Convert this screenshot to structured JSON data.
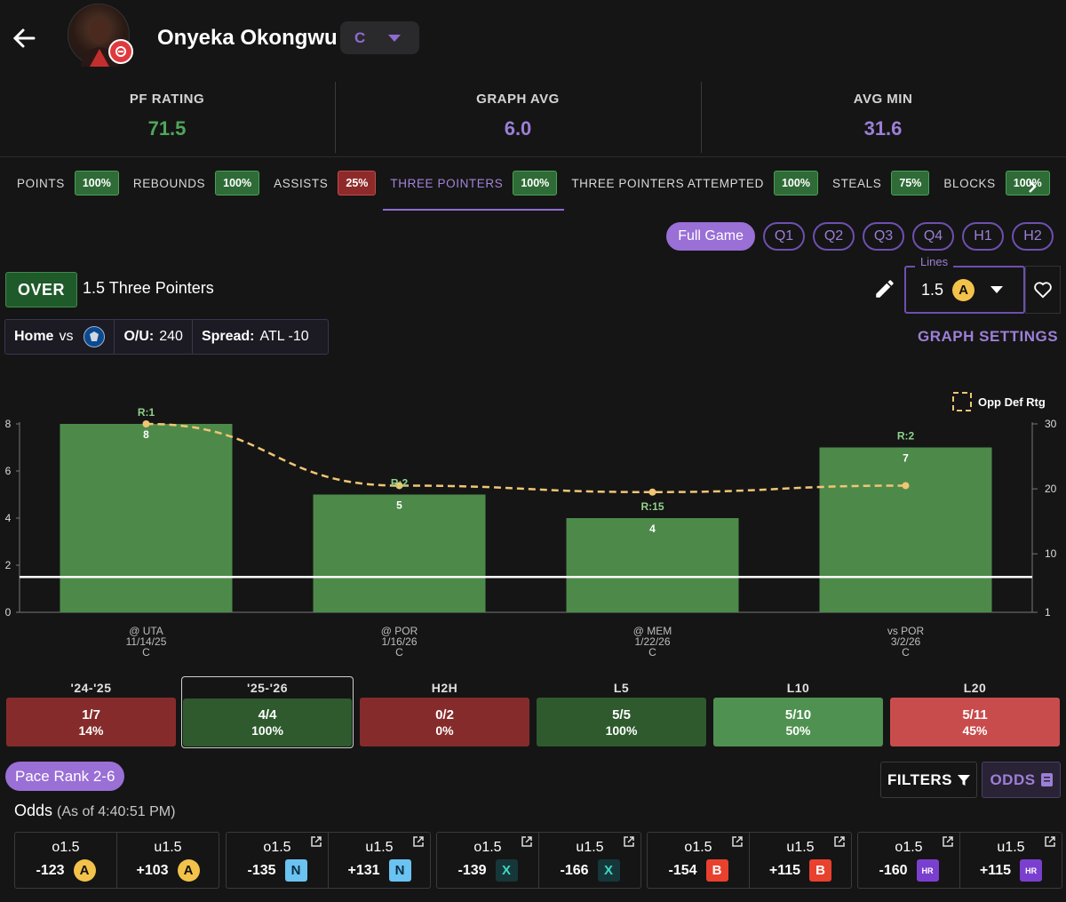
{
  "player": {
    "name": "Onyeka Okongwu",
    "position": "C"
  },
  "stats": [
    {
      "label": "PF RATING",
      "value": "71.5",
      "color": "#4fa65b"
    },
    {
      "label": "GRAPH AVG",
      "value": "6.0",
      "color": "#9c7fd6"
    },
    {
      "label": "AVG MIN",
      "value": "31.6",
      "color": "#9c7fd6"
    }
  ],
  "tabs": [
    {
      "label": "POINTS",
      "pct": "100%",
      "status": "green"
    },
    {
      "label": "REBOUNDS",
      "pct": "100%",
      "status": "green"
    },
    {
      "label": "ASSISTS",
      "pct": "25%",
      "status": "red"
    },
    {
      "label": "THREE POINTERS",
      "pct": "100%",
      "status": "green",
      "active": true
    },
    {
      "label": "THREE POINTERS ATTEMPTED",
      "pct": "100%",
      "status": "green"
    },
    {
      "label": "STEALS",
      "pct": "75%",
      "status": "green"
    },
    {
      "label": "BLOCKS",
      "pct": "100%",
      "status": "green"
    }
  ],
  "periods": [
    "Full Game",
    "Q1",
    "Q2",
    "Q3",
    "Q4",
    "H1",
    "H2"
  ],
  "prop": {
    "side": "OVER",
    "description": "1.5 Three Pointers"
  },
  "lines": {
    "label": "Lines",
    "value": "1.5"
  },
  "game": {
    "venue": "Home",
    "vs": "vs",
    "ou_label": "O/U:",
    "ou_value": "240",
    "spread_label": "Spread:",
    "spread_value": "ATL -10"
  },
  "graph_settings_label": "GRAPH SETTINGS",
  "chart_data": {
    "type": "bar",
    "categories": [
      "@ UTA",
      "@ POR",
      "@ MEM",
      "vs POR"
    ],
    "dates": [
      "11/14/25",
      "1/16/26",
      "1/22/26",
      "3/2/26"
    ],
    "positions": [
      "C",
      "C",
      "C",
      "C"
    ],
    "values": [
      8,
      5,
      4,
      7
    ],
    "value_labels": [
      "8",
      "5",
      "4",
      "7"
    ],
    "ranks": [
      "R:1",
      "R:2",
      "R:15",
      "R:2"
    ],
    "ylim": [
      0,
      8
    ],
    "yticks": [
      "0",
      "2",
      "4",
      "6",
      "8"
    ],
    "line": 1.5,
    "secondary": {
      "name": "Opp Def Rtg",
      "values": [
        30,
        20.5,
        19.5,
        20.5
      ],
      "ylim": [
        1,
        30
      ],
      "ticks": [
        1,
        10,
        20,
        30
      ],
      "tick_labels": [
        "1",
        "10",
        "20",
        "30"
      ]
    },
    "bar_color": "#4d8a4a",
    "line_color": "#f0c674"
  },
  "splits": [
    {
      "label": "'24-'25",
      "record": "1/7",
      "pct": "14%",
      "color": "#862b2b"
    },
    {
      "label": "'25-'26",
      "record": "4/4",
      "pct": "100%",
      "color": "#2e5a2e",
      "active": true
    },
    {
      "label": "H2H",
      "record": "0/2",
      "pct": "0%",
      "color": "#862b2b"
    },
    {
      "label": "L5",
      "record": "5/5",
      "pct": "100%",
      "color": "#2e5a2e"
    },
    {
      "label": "L10",
      "record": "5/10",
      "pct": "50%",
      "color": "#4f9150"
    },
    {
      "label": "L20",
      "record": "5/11",
      "pct": "45%",
      "color": "#c94c4c"
    }
  ],
  "pace_label": "Pace Rank 2-6",
  "filters_label": "FILTERS",
  "odds_label": "ODDS",
  "odds_title": "Odds",
  "odds_asof": "(As of 4:40:51 PM)",
  "books": [
    {
      "logo": "book-a-icon",
      "cells": [
        {
          "line": "o1.5",
          "price": "-123"
        },
        {
          "line": "u1.5",
          "price": "+103"
        }
      ]
    },
    {
      "logo": "book-n-icon",
      "cells": [
        {
          "line": "o1.5",
          "price": "-135"
        },
        {
          "line": "u1.5",
          "price": "+131"
        }
      ]
    },
    {
      "logo": "book-x-icon",
      "cells": [
        {
          "line": "o1.5",
          "price": "-139"
        },
        {
          "line": "u1.5",
          "price": "-166"
        }
      ]
    },
    {
      "logo": "book-b-icon",
      "cells": [
        {
          "line": "o1.5",
          "price": "-154"
        },
        {
          "line": "u1.5",
          "price": "+115"
        }
      ]
    },
    {
      "logo": "book-hr-icon",
      "cells": [
        {
          "line": "o1.5",
          "price": "-160"
        },
        {
          "line": "u1.5",
          "price": "+115"
        }
      ]
    }
  ]
}
